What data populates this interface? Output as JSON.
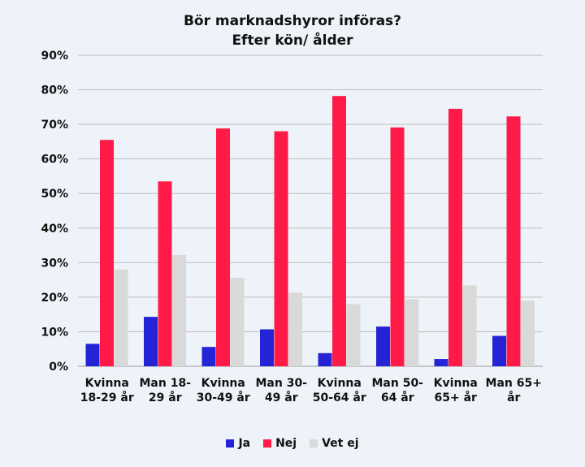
{
  "chart_data": {
    "type": "bar",
    "title": "Bör marknadshyror införas?",
    "subtitle": "Efter kön/ ålder",
    "categories": [
      [
        "Kvinna",
        "18-29 år"
      ],
      [
        "Man 18-",
        "29 år"
      ],
      [
        "Kvinna",
        "30-49 år"
      ],
      [
        "Man 30-",
        "49 år"
      ],
      [
        "Kvinna",
        "50-64 år"
      ],
      [
        "Man 50-",
        "64 år"
      ],
      [
        "Kvinna",
        "65+ år"
      ],
      [
        "Man 65+",
        "år"
      ]
    ],
    "series": [
      {
        "name": "Ja",
        "color": "#2424d6",
        "values": [
          6.5,
          14.3,
          5.6,
          10.7,
          3.8,
          11.5,
          2.1,
          8.8
        ]
      },
      {
        "name": "Nej",
        "color": "#ff1a47",
        "values": [
          65.5,
          53.5,
          68.8,
          68.0,
          78.2,
          69.1,
          74.5,
          72.3
        ]
      },
      {
        "name": "Vet ej",
        "color": "#d9d9d9",
        "values": [
          28.0,
          32.2,
          25.6,
          21.3,
          18.0,
          19.4,
          23.4,
          19.0
        ]
      }
    ],
    "yticks": [
      "0%",
      "10%",
      "20%",
      "30%",
      "40%",
      "50%",
      "60%",
      "70%",
      "80%",
      "90%"
    ],
    "ylim": [
      0,
      90
    ],
    "grid": true,
    "legend": "bottom"
  }
}
